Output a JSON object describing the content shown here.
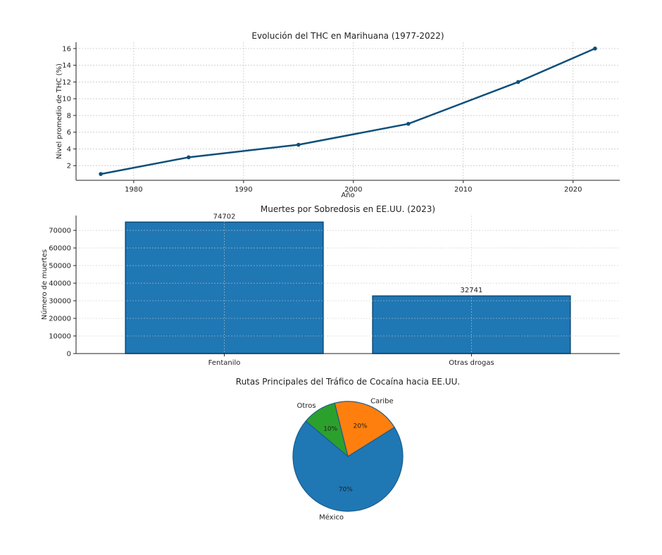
{
  "chart_data": [
    {
      "type": "line",
      "title": "Evolución del THC en Marihuana (1977-2022)",
      "xlabel": "Año",
      "ylabel": "Nivel promedio de THC (%)",
      "x": [
        1977,
        1985,
        1995,
        2005,
        2015,
        2022
      ],
      "y": [
        1,
        3,
        4.5,
        7,
        12,
        16
      ],
      "xlim": [
        1974.75,
        2024.25
      ],
      "ylim": [
        0.25,
        16.75
      ],
      "xticks": [
        1980,
        1990,
        2000,
        2010,
        2020
      ],
      "yticks": [
        2,
        4,
        6,
        8,
        10,
        12,
        14,
        16
      ],
      "grid": true,
      "color": "#0d4f7a"
    },
    {
      "type": "bar",
      "title": "Muertes por Sobredosis en EE.UU. (2023)",
      "xlabel": "",
      "ylabel": "Número de muertes",
      "categories": [
        "Fentanilo",
        "Otras drogas"
      ],
      "values": [
        74702,
        32741
      ],
      "data_labels": [
        "74702",
        "32741"
      ],
      "ylim": [
        0,
        78437
      ],
      "yticks": [
        0,
        10000,
        20000,
        30000,
        40000,
        50000,
        60000,
        70000
      ],
      "grid": true,
      "color": "#1f77b4"
    },
    {
      "type": "pie",
      "title": "Rutas Principales del Tráfico de Cocaína hacia EE.UU.",
      "labels": [
        "México",
        "Caribe",
        "Otros"
      ],
      "values": [
        70,
        20,
        10
      ],
      "pct_labels": [
        "70%",
        "20%",
        "10%"
      ],
      "colors": [
        "#1f77b4",
        "#ff7f0e",
        "#2ca02c"
      ],
      "startangle": 140
    }
  ]
}
